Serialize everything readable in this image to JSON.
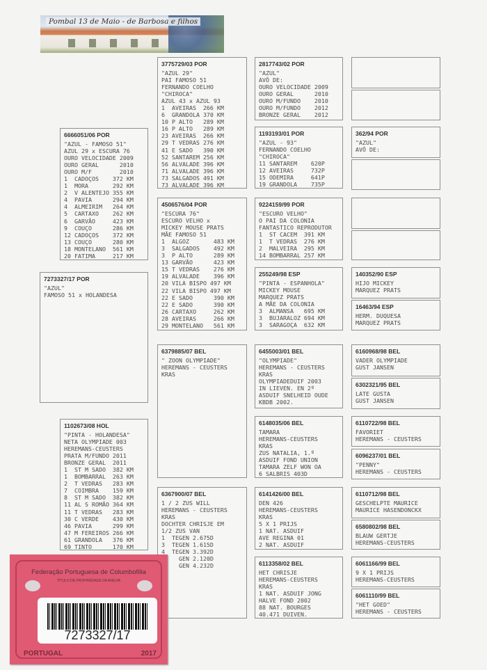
{
  "banner": {
    "title": "Pombal 13 de Maio - de Barbosa e filhos"
  },
  "cards": [
    {
      "ring": "6666051/06 POR",
      "lines": [
        "\"AZUL - FAMOSO 51\"",
        "AZUL 29 x ESCURA 76",
        "OURO VELOCIDADE 2009",
        "OURO GERAL      2010",
        "OURO M/F        2010",
        "1  CADOÇOS    372 KM",
        "1  MORA       292 KM",
        "2  V ALENTEJO 355 KM",
        "4  PAVIA      294 KM",
        "4  ALMEIRIM   264 KM",
        "5  CARTAXO    262 KM",
        "6  GARVÃO     423 KM",
        "9  COUÇO      286 KM",
        "12 CADOÇOS    372 KM",
        "13 COUÇO      280 KM",
        "18 MONTELANO  561 KM",
        "20 FATIMA     217 KM"
      ]
    },
    {
      "ring": "7273327/17 POR",
      "lines": [
        "\"AZUL\"",
        "FAMOSO 51 x HOLANDESA"
      ]
    },
    {
      "ring": "1102673/08 HOL",
      "lines": [
        "\"PINTA - HOLANDESA\"",
        "NETA OLYMPIADE 003",
        "HEREMANS-CEUSTERS",
        "PRATA M/FUNDO 2011",
        "BRONZE GERAL  2011",
        "1  ST M SADO  382 KM",
        "1  BOMBARRAL  263 KM",
        "2  T VEDRAS   283 KM",
        "7  COIMBRA    159 KM",
        "8  ST M SADO  382 KM",
        "11 AL S ROMÃO 364 KM",
        "11 T VEDRAS   283 KM",
        "30 C VERDE    430 KM",
        "46 PAVIA      299 KM",
        "47 M FEREIROS 266 KM",
        "61 GRANDOLA   376 KM",
        "69 TINTO      170 KM"
      ]
    },
    {
      "ring": "3775729/03 POR",
      "lines": [
        "\"AZUL 29\"",
        "PAI FAMOSO 51",
        "FERNANDO COELHO",
        "\"CHIROCA\"",
        "AZUL 43 x AZUL 93",
        "1  AVEIRAS  266 KM",
        "6  GRANDOLA 370 KM",
        "10 P ALTO   289 KM",
        "16 P ALTO   289 KM",
        "23 AVEIRAS  266 KM",
        "29 T VEDRAS 276 KM",
        "41 E SADO   390 KM",
        "52 SANTAREM 256 KM",
        "56 ALVALADE 396 KM",
        "71 ALVALADE 396 KM",
        "73 SALGADOS 491 KM",
        "73 ALVALADE 396 KM"
      ]
    },
    {
      "ring": "4506576/04 POR",
      "lines": [
        "\"ESCURA 76\"",
        "ESCURO VELHO x",
        "MICKEY MOUSE PRATS",
        "MÃE FAMOSO 51",
        "1  ALGOZ       483 KM",
        "3  SALGADOS    492 KM",
        "3  P ALTO      289 KM",
        "13 GARVÃO      423 KM",
        "15 T VEDRAS    276 KM",
        "19 ALVALADE    396 KM",
        "20 VILA BISPO 497 KM",
        "22 VILA BISPO 497 KM",
        "22 E SADO      390 KM",
        "22 E SADO      390 KM",
        "26 CARTAXO     262 KM",
        "28 AVEIRAS     266 KM",
        "29 MONTELANO   561 KM"
      ]
    },
    {
      "ring": "6379885/07 BEL",
      "lines": [
        "\" ZOON OLYMPIADE\"",
        "HEREMANS - CEUSTERS",
        "KRAS"
      ]
    },
    {
      "ring": "6367900/07 BEL",
      "lines": [
        "1 / 2 ZUS WILL",
        "HEREMANS - CEUSTERS",
        "KRAS",
        "DOCHTER CHRISJE EM",
        "1/2 ZUS VAN",
        "1  TEGEN 2.675D",
        "3  TEGEN 1.615D",
        "4  TEGEN 3.392D",
        "GEN 2.120D",
        "GEN 4.232D"
      ]
    },
    {
      "ring": "2817743/02 POR",
      "lines": [
        "\"AZUL\"",
        "AVÔ DE:",
        "OURO VELOCIDADE 2009",
        "OURO GERAL      2010",
        "OURO M/FUNDO    2010",
        "OURO M/FUNDO    2012",
        "BRONZE GERAL    2012"
      ]
    },
    {
      "ring": "1193193/01 POR",
      "lines": [
        "\"AZUL - 93\"",
        "FERNANDO COELHO",
        "\"CHIROCA\"",
        "11 SANTAREM    620P",
        "12 AVEIRAS     732P",
        "15 ODEMIRA     641P",
        "19 GRANDOLA    735P"
      ]
    },
    {
      "ring": "9224159/99 POR",
      "lines": [
        "\"ESCURO VELHO\"",
        "O PAI DA COLONIA",
        "FANTASTICO REPRODUTOR",
        "1  ST CACEM  391 KM",
        "1  T VEDRAS  276 KM",
        "2  MALVEIRA  295 KM",
        "14 BOMBARRAL 257 KM"
      ]
    },
    {
      "ring": "255249/98 ESP",
      "lines": [
        "\"PINTA - ESPANHOLA\"",
        "MICKEY MOUSE",
        "MARQUEZ PRATS",
        "A MÃE DA COLONIA",
        "3  ALMANSA   695 KM",
        "3  BUJARALOZ 694 KM",
        "3  SARAGOÇA  632 KM"
      ]
    },
    {
      "ring": "6455003/01 BEL",
      "lines": [
        "\"OLYMPIADE\"",
        "HEREMANS - CEUSTERS",
        "KRAS",
        "OLYMPIADEDUIF 2003",
        "IN LIEVEN. EN 2º",
        "ASDUIF SNELHEID OUDE",
        "KBDB 2002."
      ]
    },
    {
      "ring": "6148035/06 BEL",
      "lines": [
        "TAMARA",
        "HEREMANS-CEUSTERS",
        "KRAS",
        "ZUS NATALIA, 1.º",
        "ASDUIF FOND UNION",
        "TAMARA ZELF WON OA",
        "6 SALBRIS 403D"
      ]
    },
    {
      "ring": "6141426/00 BEL",
      "lines": [
        "DEN 426",
        "HEREMANS-CEUSTERS",
        "KRAS",
        "5 X 1 PRIJS",
        "1 NAT. ASDUIF",
        "AVE REGINA 01",
        "2 NAT. ASDUIF"
      ]
    },
    {
      "ring": "6113358/02 BEL",
      "lines": [
        "HET CHRISJE",
        "HEREMANS-CEUSTERS",
        "KRAS",
        "1 NAT. ASDUIF JONG",
        "HALVE FOND 2002",
        "88 NAT. BOURGES",
        "40.471 DUIVEN."
      ]
    },
    {
      "ring": "",
      "lines": []
    },
    {
      "ring": "",
      "lines": []
    },
    {
      "ring": "362/94 POR",
      "lines": [
        "\"AZUL\"",
        "AVÔ DE:"
      ]
    },
    {
      "ring": "",
      "lines": []
    },
    {
      "ring": "",
      "lines": []
    },
    {
      "ring": "",
      "lines": []
    },
    {
      "ring": "140352/90 ESP",
      "lines": [
        "HIJO MICKEY",
        "MARQUEZ PRATS"
      ]
    },
    {
      "ring": "16463/94 ESP",
      "lines": [
        "HERM. DUQUESA",
        "MARQUEZ PRATS"
      ]
    },
    {
      "ring": "6160968/98 BEL",
      "lines": [
        "VADER OLYMPIADE",
        "GUST JANSEN"
      ]
    },
    {
      "ring": "6302321/95 BEL",
      "lines": [
        "LATE GUSTA",
        "GUST JANSEN"
      ]
    },
    {
      "ring": "6110722/98 BEL",
      "lines": [
        "FAVORIET",
        "HEREMANS - CEUSTERS"
      ]
    },
    {
      "ring": "6096237/01 BEL",
      "lines": [
        "\"PENNY\"",
        "HEREMANS - CEUSTERS"
      ]
    },
    {
      "ring": "6110712/98 BEL",
      "lines": [
        "GESCHELPTE MAURICE",
        "MAURICE HASENDONCKX"
      ]
    },
    {
      "ring": "6580802/98 BEL",
      "lines": [
        "BLAUW GERTJE",
        "HEREMANS-CEUSTERS"
      ]
    },
    {
      "ring": "6061166/99 BEL",
      "lines": [
        "9 X 1 PRIJS",
        "HEREMANS-CEUSTERS"
      ]
    },
    {
      "ring": "6061110/99 BEL",
      "lines": [
        "\"HET GOED\"",
        "HEREMANS - CEUSTERS"
      ]
    }
  ],
  "ring_card": {
    "federation": "Federação Portuguesa de Columbofilia",
    "subtitle": "TÍTULO DE PROPRIEDADE DA ANILHA",
    "number": "7273327/17",
    "country": "PORTUGAL",
    "year": "2017",
    "color": "#e05a73"
  }
}
